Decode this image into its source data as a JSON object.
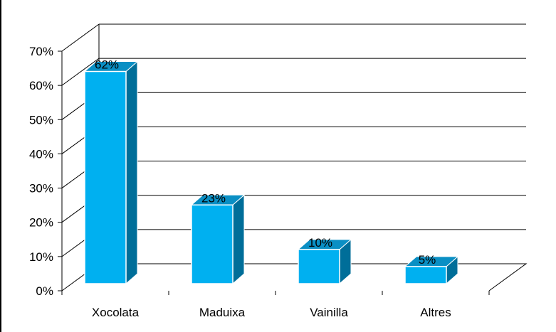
{
  "chart_data": {
    "type": "bar",
    "three_d": true,
    "categories": [
      "Xocolata",
      "Maduixa",
      "Vainilla",
      "Altres"
    ],
    "values": [
      62,
      23,
      10,
      5
    ],
    "data_labels": [
      "62%",
      "23%",
      "10%",
      "5%"
    ],
    "y_ticks": [
      "0%",
      "10%",
      "20%",
      "30%",
      "40%",
      "50%",
      "60%",
      "70%"
    ],
    "ylim": [
      0,
      70
    ],
    "grid": true,
    "legend": "none",
    "colors": {
      "bar_front": "#00B0F0",
      "bar_top": "#0A8FC4",
      "bar_side": "#006E99",
      "bar_edge": "#FFFFFF",
      "grid": "#000000",
      "walls": "#FFFFFF"
    }
  }
}
